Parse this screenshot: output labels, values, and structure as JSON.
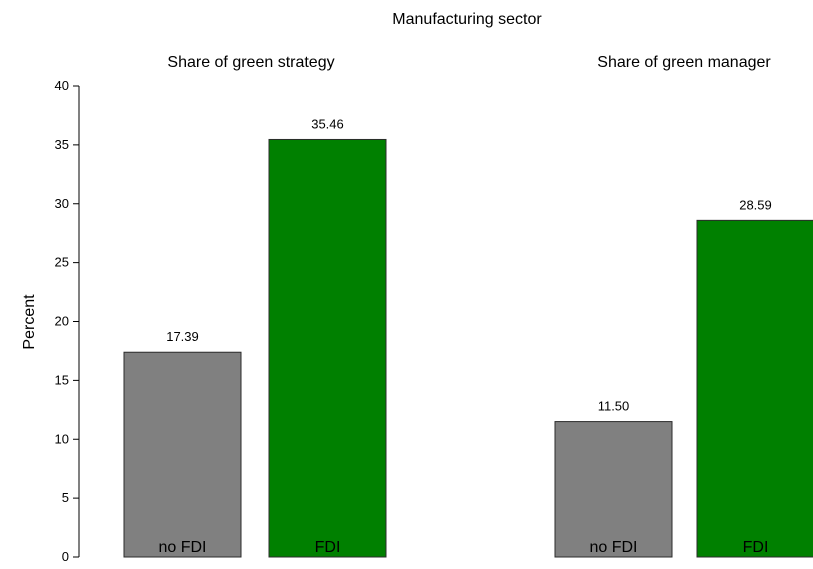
{
  "chart_data": {
    "type": "bar",
    "title": "Manufacturing sector",
    "ylabel": "Percent",
    "ylim": [
      0,
      40
    ],
    "yticks": [
      0,
      5,
      10,
      15,
      20,
      25,
      30,
      35,
      40
    ],
    "grid": false,
    "panels": [
      {
        "title": "Share of green strategy",
        "categories": [
          "no FDI",
          "FDI"
        ],
        "values": [
          17.39,
          35.46
        ],
        "value_labels": [
          "17.39",
          "35.46"
        ],
        "colors": [
          "#808080",
          "#008000"
        ]
      },
      {
        "title": "Share of green manager",
        "categories": [
          "no FDI",
          "FDI"
        ],
        "values": [
          11.5,
          28.59
        ],
        "value_labels": [
          "11.50",
          "28.59"
        ],
        "colors": [
          "#808080",
          "#008000"
        ]
      }
    ]
  }
}
